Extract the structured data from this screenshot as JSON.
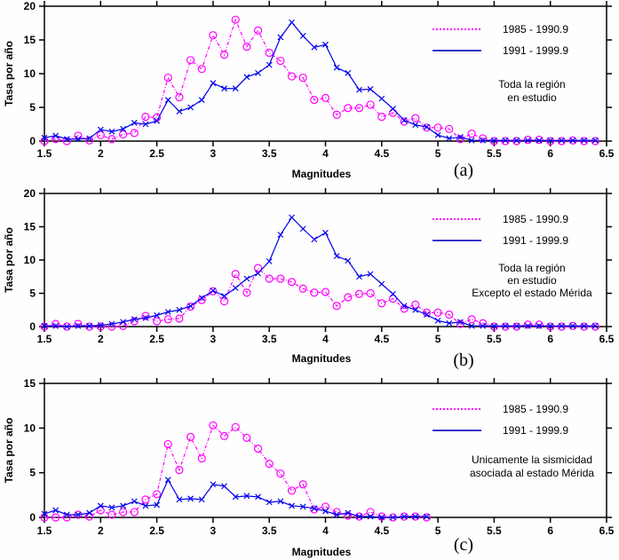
{
  "chart_data": [
    {
      "type": "line",
      "panel_label": "(a)",
      "xlabel": "Magnitudes",
      "ylabel": "Tasa por año",
      "xlim": [
        1.5,
        6.5
      ],
      "ylim": [
        0,
        20
      ],
      "xticks": [
        "1.5",
        "2",
        "2.5",
        "3",
        "3.5",
        "4",
        "4.5",
        "5",
        "5.5",
        "6",
        "6.5"
      ],
      "yticks": [
        "0",
        "5",
        "10",
        "15",
        "20"
      ],
      "note": [
        "Toda la región",
        "en estudio"
      ],
      "legend_position": "top-right",
      "x_start": 1.5,
      "x_step": 0.1,
      "series": [
        {
          "name": "1985 - 1990.9",
          "color": "#ff00ff",
          "marker": "circle",
          "style": "dash-dot",
          "values": [
            0,
            0.3,
            0,
            0.8,
            0.1,
            0.9,
            0.3,
            1.0,
            1.2,
            3.6,
            3.5,
            9.4,
            6.5,
            12.0,
            10.7,
            15.7,
            12.8,
            18.0,
            14.0,
            16.4,
            13.1,
            11.9,
            9.6,
            9.4,
            6.1,
            6.4,
            3.9,
            4.9,
            4.9,
            5.4,
            3.6,
            4.2,
            2.9,
            3.4,
            2.0,
            2.0,
            1.8,
            0.3,
            1.1,
            0.4,
            0,
            0,
            0,
            0.2,
            0.2,
            0,
            0,
            0.1,
            0,
            0
          ]
        },
        {
          "name": "1991 - 1999.9",
          "color": "#0000ee",
          "marker": "x",
          "style": "solid",
          "values": [
            0.5,
            0.8,
            0.3,
            0.3,
            0.4,
            1.7,
            1.4,
            1.8,
            2.7,
            2.5,
            3.0,
            6.1,
            4.4,
            5.0,
            6.1,
            8.6,
            7.8,
            7.8,
            9.5,
            10.1,
            11.3,
            15.4,
            17.6,
            15.6,
            13.9,
            14.3,
            10.9,
            10.1,
            7.6,
            7.7,
            6.3,
            4.8,
            3.1,
            2.4,
            2.1,
            0.9,
            0.4,
            0.6,
            0.1,
            0.1,
            0.1,
            0.1,
            0.1,
            0.1,
            0.1,
            0.1,
            0.1,
            0.1,
            0.1,
            0.1
          ]
        }
      ]
    },
    {
      "type": "line",
      "panel_label": "(b)",
      "xlabel": "Magnitudes",
      "ylabel": "Tasa por año",
      "xlim": [
        1.5,
        6.5
      ],
      "ylim": [
        0,
        20
      ],
      "xticks": [
        "1.5",
        "2",
        "2.5",
        "3",
        "3.5",
        "4",
        "4.5",
        "5",
        "5.5",
        "6",
        "6.5"
      ],
      "yticks": [
        "0",
        "5",
        "10",
        "15",
        "20"
      ],
      "note": [
        "Toda la región",
        "en estudio",
        "Excepto el estado Mérida"
      ],
      "legend_position": "top-right",
      "x_start": 1.5,
      "x_step": 0.1,
      "series": [
        {
          "name": "1985 - 1990.9",
          "color": "#ff00ff",
          "marker": "circle",
          "style": "dash-dot",
          "values": [
            0,
            0.4,
            0,
            0.4,
            0,
            0,
            0,
            0.1,
            0.8,
            1.6,
            0.8,
            1.1,
            1.2,
            3.0,
            4.0,
            5.3,
            3.8,
            7.9,
            5.1,
            8.8,
            7.2,
            7.2,
            6.7,
            5.7,
            5.1,
            5.2,
            3.1,
            4.4,
            4.9,
            5.0,
            3.5,
            4.2,
            2.7,
            3.3,
            2.1,
            2.1,
            1.8,
            0.4,
            1.1,
            0.5,
            0,
            0,
            0,
            0.3,
            0.3,
            0,
            0,
            0.1,
            0,
            0
          ]
        },
        {
          "name": "1991 - 1999.9",
          "color": "#0000ee",
          "marker": "x",
          "style": "solid",
          "values": [
            0.1,
            0.1,
            0,
            0.1,
            0.1,
            0.2,
            0.4,
            0.7,
            1.1,
            1.3,
            1.7,
            2.2,
            2.5,
            3.1,
            4.3,
            5.4,
            4.6,
            5.8,
            7.2,
            8.0,
            9.8,
            13.8,
            16.4,
            14.7,
            13.1,
            14.1,
            10.6,
            9.9,
            7.5,
            7.9,
            6.4,
            4.9,
            3.1,
            2.5,
            1.8,
            0.9,
            0.5,
            0.7,
            0.1,
            0.1,
            0.1,
            0.1,
            0.1,
            0.1,
            0.1,
            0.1,
            0.1,
            0.1,
            0.1,
            0.1
          ]
        }
      ]
    },
    {
      "type": "line",
      "panel_label": "(c)",
      "xlabel": "Magnitudes",
      "ylabel": "Tasa por año",
      "xlim": [
        1.5,
        6.5
      ],
      "ylim": [
        0,
        15
      ],
      "xticks": [
        "1.5",
        "2",
        "2.5",
        "3",
        "3.5",
        "4",
        "4.5",
        "5",
        "5.5",
        "6",
        "6.5"
      ],
      "yticks": [
        "0",
        "5",
        "10",
        "15"
      ],
      "note": [
        "Unicamente la sismicidad",
        "asociada al estado Mérida"
      ],
      "legend_position": "top-right",
      "x_start": 1.5,
      "x_step": 0.1,
      "series": [
        {
          "name": "1985 - 1990.9",
          "color": "#ff00ff",
          "marker": "circle",
          "style": "dash-dot",
          "values": [
            0,
            0,
            0,
            0.3,
            0.1,
            0.8,
            0.3,
            0.6,
            0.6,
            2.0,
            2.6,
            8.2,
            5.3,
            9.0,
            6.6,
            10.3,
            9.1,
            10.1,
            8.9,
            7.7,
            6.0,
            4.9,
            3.0,
            3.7,
            0.9,
            1.2,
            0.6,
            0.2,
            0.1,
            0.6,
            0.1,
            0,
            0.1,
            0.1,
            0
          ]
        },
        {
          "name": "1991 - 1999.9",
          "color": "#0000ee",
          "marker": "x",
          "style": "solid",
          "values": [
            0.4,
            0.8,
            0.3,
            0.3,
            0.5,
            1.3,
            1.1,
            1.3,
            1.8,
            1.3,
            1.4,
            4.2,
            2.0,
            2.1,
            2.0,
            3.7,
            3.5,
            2.3,
            2.4,
            2.3,
            1.7,
            1.8,
            1.3,
            1.2,
            1.0,
            0.7,
            0.3,
            0.5,
            0.1,
            0.1,
            0,
            0,
            0.1,
            0.1,
            0.1
          ]
        }
      ]
    }
  ]
}
